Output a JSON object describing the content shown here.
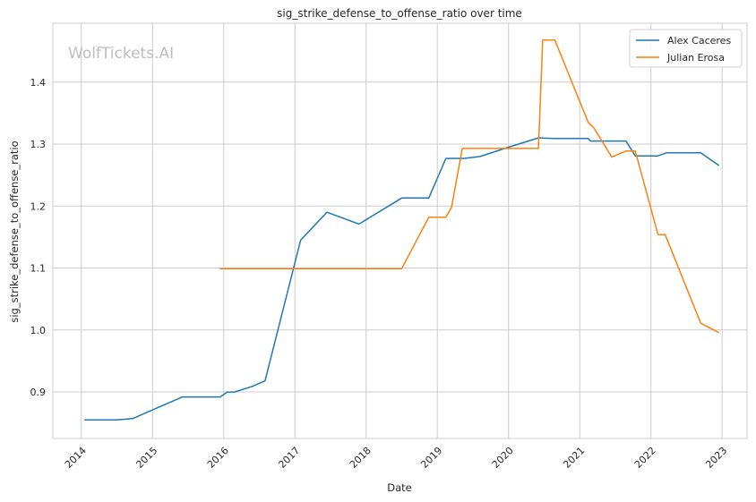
{
  "chart_data": {
    "type": "line",
    "title": "sig_strike_defense_to_offense_ratio over time",
    "xlabel": "Date",
    "ylabel": "sig_strike_defense_to_offense_ratio",
    "watermark": "WolfTickets.AI",
    "grid": true,
    "legend_position": "top-right",
    "xlim": [
      2013.6,
      2023.35
    ],
    "ylim": [
      0.825,
      1.495
    ],
    "xticks": [
      "2014",
      "2015",
      "2016",
      "2017",
      "2018",
      "2019",
      "2020",
      "2021",
      "2022",
      "2023"
    ],
    "yticks": [
      "0.9",
      "1.0",
      "1.1",
      "1.2",
      "1.3",
      "1.4"
    ],
    "series": [
      {
        "name": "Alex Caceres",
        "color": "#1f77b4",
        "points": [
          [
            2014.05,
            0.855
          ],
          [
            2014.5,
            0.855
          ],
          [
            2014.72,
            0.857
          ],
          [
            2015.42,
            0.892
          ],
          [
            2015.95,
            0.892
          ],
          [
            2016.05,
            0.9
          ],
          [
            2016.15,
            0.9
          ],
          [
            2016.4,
            0.909
          ],
          [
            2016.58,
            0.918
          ],
          [
            2017.08,
            1.145
          ],
          [
            2017.45,
            1.19
          ],
          [
            2017.9,
            1.171
          ],
          [
            2018.5,
            1.213
          ],
          [
            2018.88,
            1.213
          ],
          [
            2019.12,
            1.277
          ],
          [
            2019.38,
            1.277
          ],
          [
            2019.6,
            1.28
          ],
          [
            2020.0,
            1.295
          ],
          [
            2020.42,
            1.31
          ],
          [
            2020.65,
            1.309
          ],
          [
            2021.12,
            1.309
          ],
          [
            2021.15,
            1.305
          ],
          [
            2021.65,
            1.305
          ],
          [
            2021.78,
            1.281
          ],
          [
            2022.1,
            1.281
          ],
          [
            2022.22,
            1.286
          ],
          [
            2022.7,
            1.286
          ],
          [
            2022.95,
            1.266
          ]
        ]
      },
      {
        "name": "Julian Erosa",
        "color": "#ff7f0e",
        "points": [
          [
            2015.95,
            1.099
          ],
          [
            2018.5,
            1.099
          ],
          [
            2018.88,
            1.182
          ],
          [
            2019.12,
            1.182
          ],
          [
            2019.2,
            1.198
          ],
          [
            2019.35,
            1.293
          ],
          [
            2020.42,
            1.293
          ],
          [
            2020.48,
            1.468
          ],
          [
            2020.65,
            1.468
          ],
          [
            2021.12,
            1.335
          ],
          [
            2021.2,
            1.326
          ],
          [
            2021.45,
            1.279
          ],
          [
            2021.65,
            1.289
          ],
          [
            2021.78,
            1.289
          ],
          [
            2022.1,
            1.154
          ],
          [
            2022.2,
            1.154
          ],
          [
            2022.7,
            1.011
          ],
          [
            2022.95,
            0.996
          ]
        ]
      }
    ]
  }
}
